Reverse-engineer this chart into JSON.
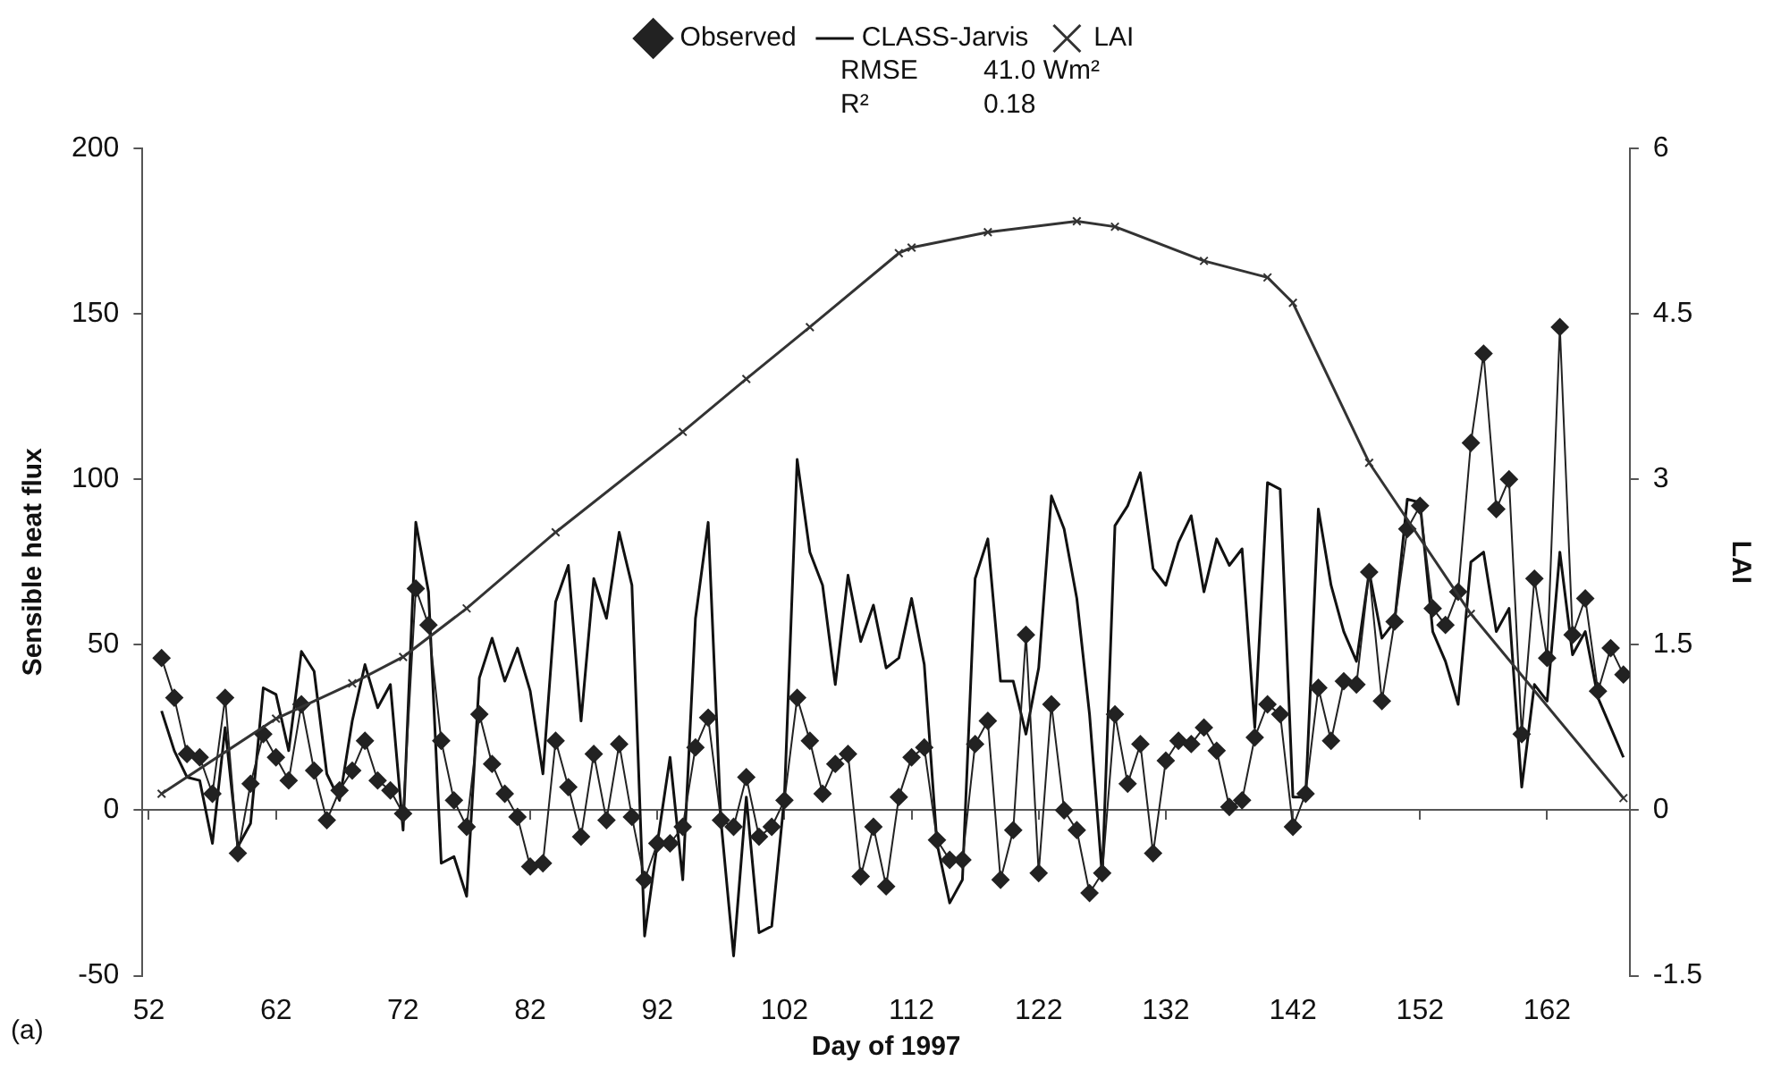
{
  "chart_data": {
    "type": "line",
    "xlabel": "Day of 1997",
    "ylabel": "Sensible heat flux",
    "y2label": "LAI",
    "annotations": [
      "RMSE",
      "41.0 Wm²",
      "R²",
      "0.18",
      "(a)"
    ],
    "x": [
      53,
      54,
      55,
      56,
      57,
      58,
      59,
      60,
      61,
      62,
      63,
      64,
      65,
      66,
      67,
      68,
      69,
      70,
      71,
      72,
      73,
      74,
      75,
      76,
      77,
      78,
      79,
      80,
      81,
      82,
      83,
      84,
      85,
      86,
      87,
      88,
      89,
      90,
      91,
      92,
      93,
      94,
      95,
      96,
      97,
      98,
      99,
      100,
      101,
      102,
      103,
      104,
      105,
      106,
      107,
      108,
      109,
      110,
      111,
      112,
      113,
      114,
      115,
      116,
      117,
      118,
      119,
      120,
      121,
      122,
      123,
      124,
      125,
      126,
      127,
      128,
      129,
      130,
      131,
      132,
      133,
      134,
      135,
      136,
      137,
      138,
      139,
      140,
      141,
      142,
      143,
      144,
      145,
      146,
      147,
      148,
      149,
      150,
      151,
      152,
      153,
      154,
      155,
      156,
      157,
      158,
      159,
      160,
      161,
      162,
      163,
      164,
      165,
      166,
      167,
      168
    ],
    "series": [
      {
        "name": "Observed",
        "color": "#222222",
        "marker": "diamond",
        "values": [
          46,
          34,
          17,
          16,
          5,
          34,
          -13,
          8,
          23,
          16,
          9,
          32,
          12,
          -3,
          6,
          12,
          21,
          9,
          6,
          -1,
          67,
          56,
          21,
          3,
          -5,
          29,
          14,
          5,
          -2,
          -17,
          -16,
          21,
          7,
          -8,
          17,
          -3,
          20,
          -2,
          -21,
          -10,
          -10,
          -5,
          19,
          28,
          -3,
          -5,
          10,
          -8,
          -5,
          3,
          34,
          21,
          5,
          14,
          17,
          -20,
          -5,
          -23,
          4,
          16,
          19,
          -9,
          -15,
          -15,
          20,
          27,
          -21,
          -6,
          53,
          -19,
          32,
          0,
          -6,
          -25,
          -19,
          29,
          8,
          20,
          -13,
          15,
          21,
          20,
          25,
          18,
          1,
          3,
          22,
          32,
          29,
          -5,
          5,
          37,
          21,
          39,
          38,
          72,
          33,
          57,
          85,
          92,
          61,
          56,
          66,
          111,
          138,
          91,
          100,
          23,
          70,
          46,
          146,
          53,
          64,
          36,
          49,
          41
        ]
      },
      {
        "name": "CLASS-Jarvis",
        "color": "#111111",
        "marker": "none",
        "values": [
          30,
          18,
          10,
          9,
          -10,
          25,
          -11,
          -4,
          37,
          35,
          18,
          48,
          42,
          11,
          3,
          27,
          44,
          31,
          38,
          -6,
          87,
          66,
          -16,
          -14,
          -26,
          40,
          52,
          39,
          49,
          36,
          11,
          63,
          74,
          27,
          70,
          58,
          84,
          68,
          -38,
          -10,
          16,
          -21,
          58,
          87,
          -3,
          -44,
          4,
          -37,
          -35,
          4,
          106,
          78,
          68,
          38,
          71,
          51,
          62,
          43,
          46,
          64,
          44,
          -10,
          -28,
          -21,
          70,
          82,
          39,
          39,
          23,
          43,
          95,
          85,
          64,
          29,
          -20,
          86,
          92,
          102,
          73,
          68,
          81,
          89,
          66,
          82,
          74,
          79,
          25,
          99,
          97,
          4,
          4,
          91,
          68,
          54,
          45,
          72,
          52,
          57,
          94,
          93,
          54,
          45,
          32,
          75,
          78,
          54,
          61,
          7,
          38,
          33,
          78,
          47,
          54,
          34,
          25,
          16
        ]
      },
      {
        "name": "LAI",
        "color": "#333333",
        "marker": "cross",
        "axis": "y2",
        "x": [
          53,
          62,
          68,
          72,
          77,
          84,
          94,
          99,
          104,
          111,
          112,
          118,
          125,
          128,
          135,
          140,
          142,
          148,
          156,
          168
        ],
        "values": [
          0.15,
          0.83,
          1.15,
          1.39,
          1.83,
          2.52,
          3.43,
          3.91,
          4.38,
          5.05,
          5.1,
          5.24,
          5.34,
          5.29,
          4.98,
          4.83,
          4.6,
          3.15,
          1.78,
          0.11
        ]
      }
    ],
    "xlim": [
      51.5,
      168.5
    ],
    "xticks": [
      52,
      62,
      72,
      82,
      92,
      102,
      112,
      122,
      132,
      142,
      152,
      162
    ],
    "ylim": [
      -50,
      200
    ],
    "yticks": [
      -50,
      0,
      50,
      100,
      150,
      200
    ],
    "y2lim": [
      -1.5,
      6
    ],
    "y2ticks": [
      -1.5,
      0,
      1.5,
      3,
      4.5,
      6
    ],
    "legend": "top"
  }
}
